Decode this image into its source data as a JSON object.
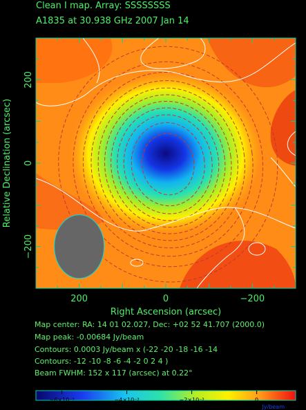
{
  "header": {
    "title": "Clean I map.  Array:  SSSSSSSS",
    "subtitle": "A1835 at 30.938 GHz 2007 Jan 14"
  },
  "info_lines": [
    "Map center:  RA: 14 01 02.027,  Dec: +02 52 41.707 (2000.0)",
    "Map peak: -0.00684 Jy/beam",
    "Contours: 0.0003 Jy/beam x (-22 -20 -18 -16 -14",
    "Contours: -12 -10 -8 -6 -4 -2 0 2 4 )",
    "Beam FWHM: 152 x 117 (arcsec) at 0.22°"
  ],
  "chart_data": {
    "type": "heatmap",
    "xlabel": "Right Ascension  (arcsec)",
    "ylabel": "Relative Declination  (arcsec)",
    "xlim": [
      300,
      -300
    ],
    "ylim": [
      -300,
      300
    ],
    "x_ticks": [
      200,
      0,
      -200
    ],
    "y_ticks": [
      200,
      0,
      -200
    ],
    "grid": false,
    "map_peak_jy_per_beam": -0.00684,
    "contour_unit_jy_per_beam": 0.0003,
    "contour_levels_negative": [
      -22,
      -20,
      -18,
      -16,
      -14,
      -12,
      -10,
      -8,
      -6,
      -4,
      -2
    ],
    "contour_levels_positive": [
      0,
      2,
      4
    ],
    "beam": {
      "fwhm_major_arcsec": 152,
      "fwhm_minor_arcsec": 117,
      "pa_deg": 0.22,
      "center_arcsec": [
        200,
        -200
      ]
    },
    "decrement_center_arcsec": [
      0,
      0
    ],
    "colorbar": {
      "range": [
        -0.0068,
        0.0012
      ],
      "tick_values": [
        -0.006,
        -0.004,
        -0.002,
        0
      ],
      "tick_labels": [
        "−6×10⁻³",
        "−4×10⁻³",
        "−2×10⁻³",
        "0"
      ],
      "unit": "Jy/beam"
    }
  },
  "colors": {
    "axis": "#00d1a0",
    "text": "#4ff06a",
    "beam_fill": "#666666",
    "beam_edge": "#00e0e0",
    "negative_contour": "#c03a2b",
    "positive_contour": "#ffffff"
  }
}
